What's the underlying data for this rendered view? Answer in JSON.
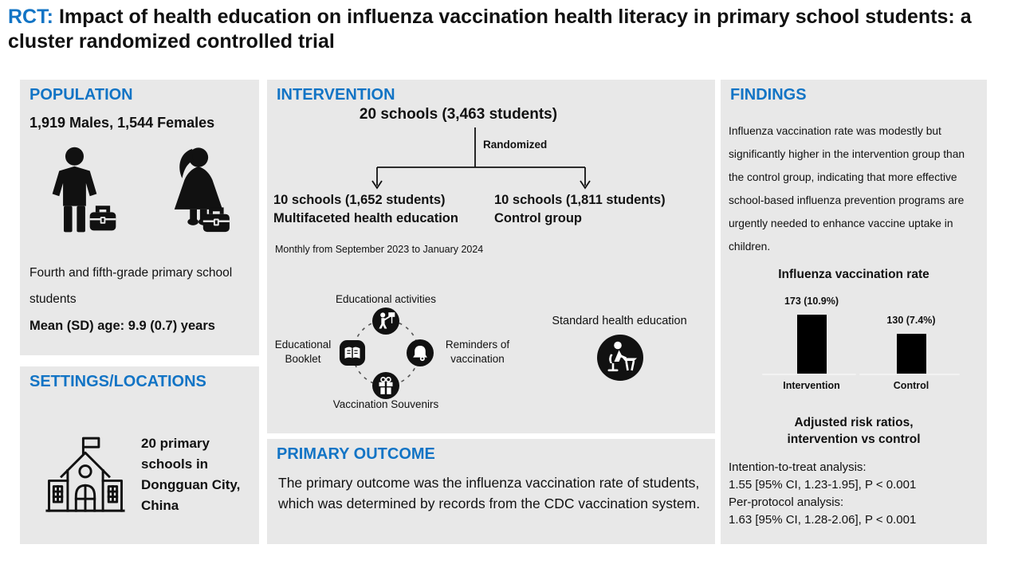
{
  "title": {
    "prefix": "RCT:",
    "text": "Impact of health education on influenza vaccination health literacy in primary school students: a cluster randomized controlled trial"
  },
  "colors": {
    "accent_blue": "#1274c5",
    "panel_bg": "#e8e8e8",
    "text": "#111111",
    "bar": "#000000"
  },
  "population": {
    "heading": "POPULATION",
    "counts": "1,919 Males, 1,544 Females",
    "icons": [
      "boy-student-icon",
      "girl-student-icon"
    ],
    "description": "Fourth and fifth-grade primary school students",
    "age": "Mean (SD) age: 9.9 (0.7) years"
  },
  "settings": {
    "heading": "SETTINGS/LOCATIONS",
    "icon": "school-building-icon",
    "text": "20 primary schools in Dongguan City, China"
  },
  "intervention": {
    "heading": "INTERVENTION",
    "total": "20 schools (3,463 students)",
    "randomized_label": "Randomized",
    "arms": [
      {
        "line1": "10 schools (1,652 students)",
        "line2": "Multifaceted health education"
      },
      {
        "line1": "10 schools (1,811 students)",
        "line2": "Control group"
      }
    ],
    "schedule": "Monthly from September 2023 to January 2024",
    "components": [
      {
        "label": "Educational activities",
        "icon": "presenter-icon"
      },
      {
        "label": "Educational Booklet",
        "icon": "open-book-icon"
      },
      {
        "label": "Reminders of vaccination",
        "icon": "bell-icon"
      },
      {
        "label": "Vaccination Souvenirs",
        "icon": "gift-icon"
      }
    ],
    "control_label": "Standard health education",
    "control_icon": "student-desk-icon"
  },
  "primary_outcome": {
    "heading": "PRIMARY OUTCOME",
    "text": "The primary outcome was the influenza vaccination rate of students, which was determined by records from the CDC vaccination system."
  },
  "findings": {
    "heading": "FINDINGS",
    "summary": "Influenza vaccination rate was modestly but significantly higher in the intervention group than the control group, indicating that more effective school-based influenza prevention programs are urgently needed to enhance vaccine uptake in children.",
    "risk_heading_line1": "Adjusted risk ratios,",
    "risk_heading_line2": "intervention vs control",
    "itt_label": "Intention-to-treat analysis:",
    "itt_value": "1.55 [95% CI, 1.23-1.95], P < 0.001",
    "pp_label": "Per-protocol analysis:",
    "pp_value": "1.63 [95% CI, 1.28-2.06], P < 0.001"
  },
  "chart_data": {
    "type": "bar",
    "title": "Influenza vaccination rate",
    "categories": [
      "Intervention",
      "Control"
    ],
    "values": [
      10.9,
      7.4
    ],
    "counts": [
      173,
      130
    ],
    "bar_labels": [
      "173 (10.9%)",
      "130 (7.4%)"
    ],
    "unit": "%",
    "ylim": [
      0,
      12
    ],
    "bar_color": "#000000",
    "grid": false,
    "legend": false
  }
}
